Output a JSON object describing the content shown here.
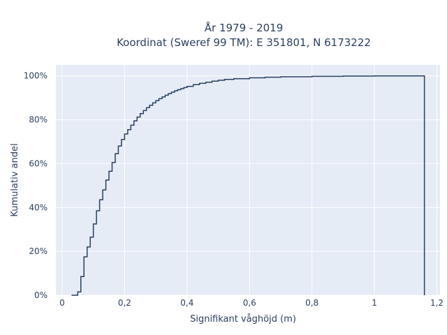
{
  "chart_data": {
    "type": "line",
    "line_shape": "step",
    "title_lines": [
      "År 1979 - 2019",
      "Koordinat (Sweref 99 TM): E 351801, N 6173222"
    ],
    "xlabel": "Signifikant våghöjd (m)",
    "ylabel": "Kumulativ andel",
    "xlim": [
      -0.02,
      1.21
    ],
    "ylim": [
      0,
      1.05
    ],
    "x_ticks": [
      0,
      0.2,
      0.4,
      0.6,
      0.8,
      1,
      1.2
    ],
    "x_tick_labels": [
      "0",
      "0,2",
      "0,4",
      "0,6",
      "0,8",
      "1",
      "1,2"
    ],
    "y_ticks": [
      0,
      0.2,
      0.4,
      0.6,
      0.8,
      1
    ],
    "y_tick_labels": [
      "0%",
      "20%",
      "40%",
      "60%",
      "80%",
      "100%"
    ],
    "grid": true,
    "line_color": "#2a3f5f",
    "plot_bg": "#e5ecf6",
    "series": [
      {
        "x": [
          0.03,
          0.05,
          0.06,
          0.07,
          0.08,
          0.09,
          0.1,
          0.11,
          0.12,
          0.13,
          0.14,
          0.15,
          0.16,
          0.17,
          0.18,
          0.19,
          0.2,
          0.21,
          0.22,
          0.23,
          0.24,
          0.25,
          0.26,
          0.27,
          0.28,
          0.29,
          0.3,
          0.31,
          0.32,
          0.33,
          0.34,
          0.35,
          0.36,
          0.37,
          0.38,
          0.39,
          0.4,
          0.42,
          0.44,
          0.46,
          0.48,
          0.5,
          0.52,
          0.55,
          0.6,
          0.65,
          0.7,
          0.8,
          0.9,
          1.0,
          1.16,
          1.16
        ],
        "y": [
          0.0,
          0.015,
          0.085,
          0.175,
          0.22,
          0.265,
          0.325,
          0.385,
          0.435,
          0.48,
          0.525,
          0.565,
          0.605,
          0.645,
          0.68,
          0.71,
          0.735,
          0.755,
          0.775,
          0.795,
          0.812,
          0.828,
          0.842,
          0.855,
          0.866,
          0.877,
          0.887,
          0.896,
          0.904,
          0.912,
          0.919,
          0.926,
          0.932,
          0.937,
          0.942,
          0.947,
          0.952,
          0.96,
          0.966,
          0.971,
          0.976,
          0.98,
          0.984,
          0.987,
          0.991,
          0.994,
          0.996,
          0.998,
          0.999,
          1.0,
          1.0,
          0.0
        ]
      }
    ]
  }
}
